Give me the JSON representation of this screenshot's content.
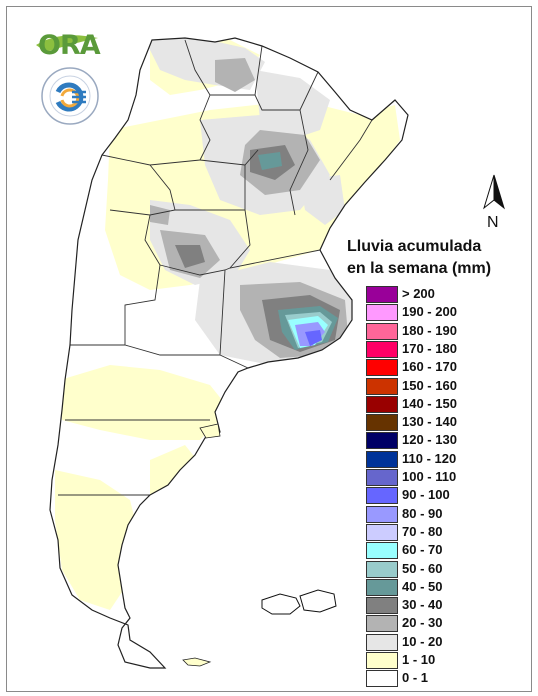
{
  "legend": {
    "title_line1": "Lluvia acumulada",
    "title_line2": "en la semana (mm)",
    "items": [
      {
        "label": "> 200",
        "color": "#990099"
      },
      {
        "label": "190 - 200",
        "color": "#ff99ff"
      },
      {
        "label": "180 - 190",
        "color": "#ff6699"
      },
      {
        "label": "170 - 180",
        "color": "#ff0066"
      },
      {
        "label": "160 - 170",
        "color": "#ff0000"
      },
      {
        "label": "150 - 160",
        "color": "#cc3300"
      },
      {
        "label": "140 - 150",
        "color": "#990000"
      },
      {
        "label": "130 - 140",
        "color": "#663300"
      },
      {
        "label": "120 - 130",
        "color": "#000066"
      },
      {
        "label": "110 - 120",
        "color": "#003399"
      },
      {
        "label": "100 - 110",
        "color": "#6666cc"
      },
      {
        "label": "90 - 100",
        "color": "#6666ff"
      },
      {
        "label": "80 - 90",
        "color": "#9999ff"
      },
      {
        "label": "70 - 80",
        "color": "#ccccff"
      },
      {
        "label": "60 - 70",
        "color": "#99ffff"
      },
      {
        "label": "50 - 60",
        "color": "#99cccc"
      },
      {
        "label": "40 - 50",
        "color": "#669999"
      },
      {
        "label": "30 - 40",
        "color": "#808080"
      },
      {
        "label": "20 - 30",
        "color": "#b3b3b3"
      },
      {
        "label": "10 - 20",
        "color": "#e6e6e6"
      },
      {
        "label": "1 - 10",
        "color": "#ffffcc"
      },
      {
        "label": "0 - 1",
        "color": "#ffffff"
      }
    ]
  },
  "north_arrow": {
    "label": "N",
    "icon": "north-arrow-icon"
  },
  "logos": {
    "ora_text": "ORA",
    "seal_text": "SERVICIO METEOROLOGICO NACIONAL ARGENTINA",
    "seal_icon": "smn-seal-icon"
  }
}
